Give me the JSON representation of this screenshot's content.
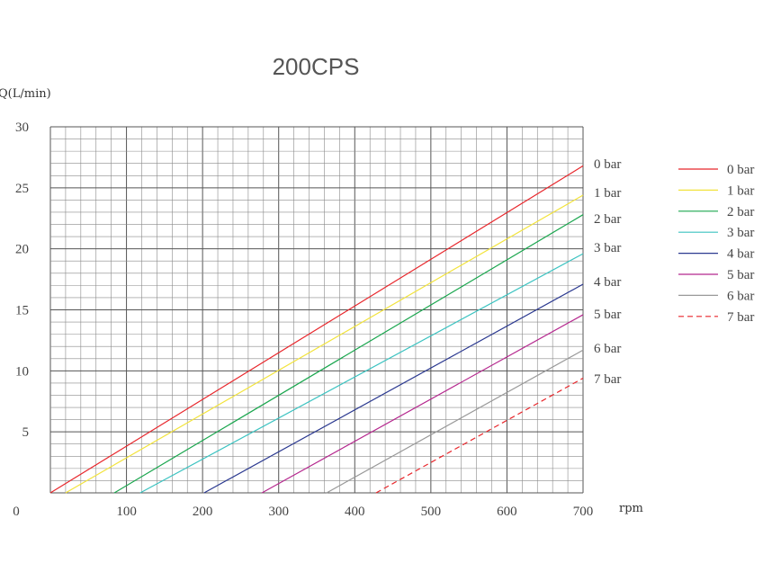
{
  "chart_data": {
    "type": "line",
    "title": "200CPS",
    "ylabel": "Q(L/min)",
    "xlabel": "rpm",
    "xlim": [
      0,
      700
    ],
    "ylim": [
      0,
      30
    ],
    "x_ticks": [
      "0",
      "100",
      "200",
      "300",
      "400",
      "500",
      "600",
      "700"
    ],
    "y_ticks": [
      "5",
      "10",
      "15",
      "20",
      "25",
      "30"
    ],
    "grid": true,
    "legend_position": "right",
    "series": [
      {
        "name": "0 bar",
        "color": "#e8262b",
        "dashed": false,
        "points": [
          [
            0,
            0
          ],
          [
            700,
            26.8
          ]
        ]
      },
      {
        "name": "1 bar",
        "color": "#f2e33c",
        "dashed": false,
        "points": [
          [
            20,
            0
          ],
          [
            700,
            24.4
          ]
        ]
      },
      {
        "name": "2 bar",
        "color": "#1aa64e",
        "dashed": false,
        "points": [
          [
            84,
            0
          ],
          [
            700,
            22.8
          ]
        ]
      },
      {
        "name": "3 bar",
        "color": "#3cc3c1",
        "dashed": false,
        "points": [
          [
            118,
            0
          ],
          [
            700,
            19.6
          ]
        ]
      },
      {
        "name": "4 bar",
        "color": "#2b3990",
        "dashed": false,
        "points": [
          [
            202,
            0
          ],
          [
            700,
            17.1
          ]
        ]
      },
      {
        "name": "5 bar",
        "color": "#b5288e",
        "dashed": false,
        "points": [
          [
            278,
            0
          ],
          [
            700,
            14.6
          ]
        ]
      },
      {
        "name": "6 bar",
        "color": "#999999",
        "dashed": false,
        "points": [
          [
            363,
            0
          ],
          [
            700,
            11.7
          ]
        ]
      },
      {
        "name": "7 bar",
        "color": "#e8262b",
        "dashed": true,
        "points": [
          [
            428,
            0
          ],
          [
            700,
            9.4
          ]
        ]
      }
    ]
  }
}
